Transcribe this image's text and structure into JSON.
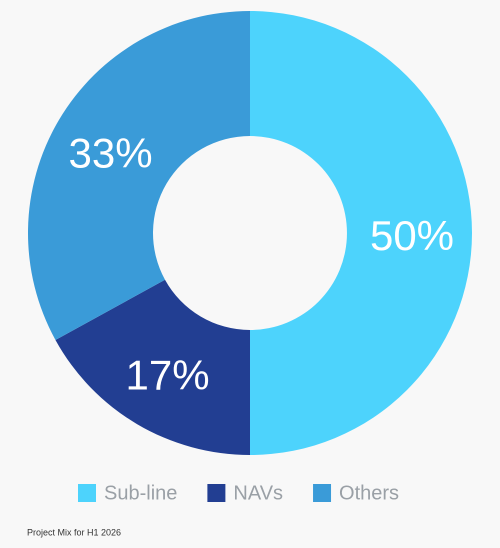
{
  "chart_data": {
    "type": "donut",
    "caption": "Project Mix for H1 2026",
    "categories": [
      "Sub-line",
      "NAVs",
      "Others"
    ],
    "values": [
      50,
      17,
      33
    ],
    "value_labels": [
      "50%",
      "17%",
      "33%"
    ],
    "colors": [
      "#4dd3fc",
      "#223e92",
      "#3a9bd8"
    ]
  }
}
